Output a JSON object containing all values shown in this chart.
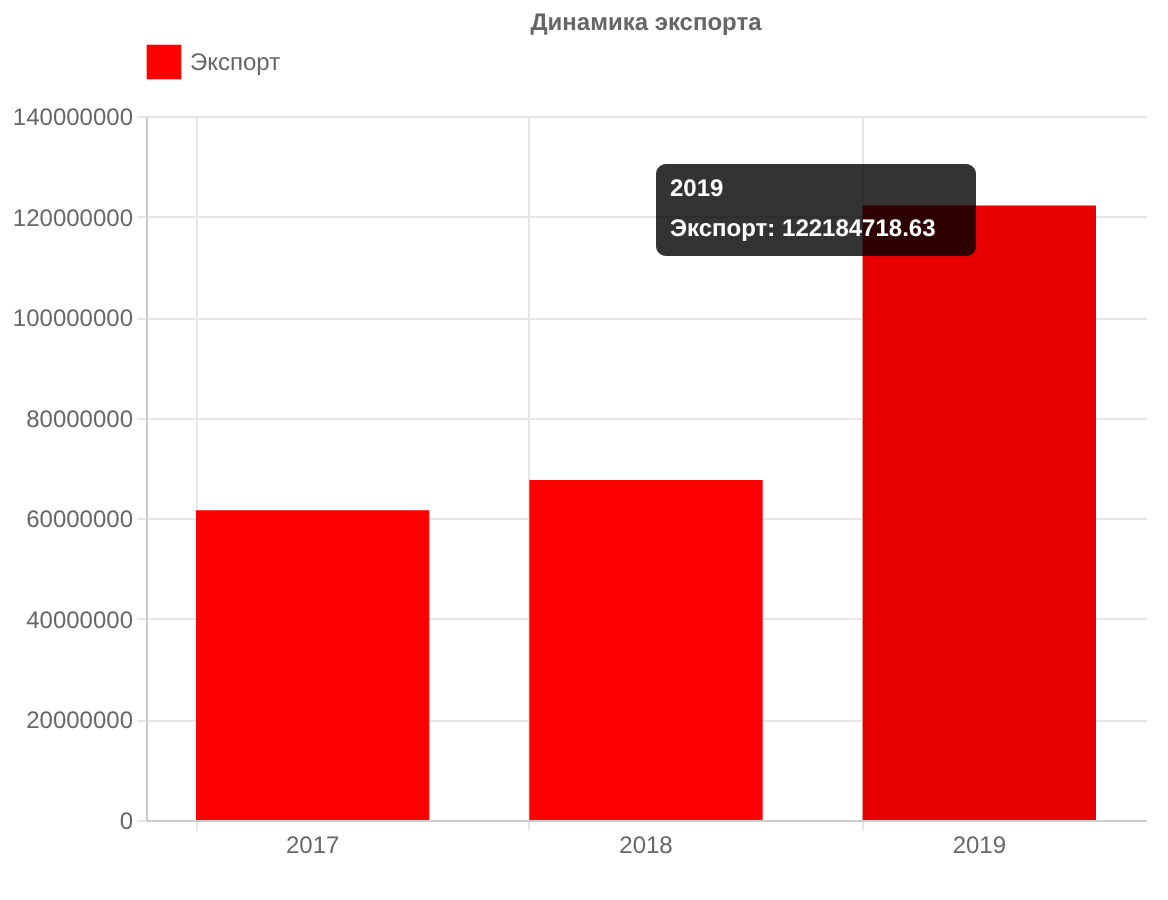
{
  "chart_data": {
    "type": "bar",
    "title": "Динамика экспорта",
    "categories": [
      "2017",
      "2018",
      "2019"
    ],
    "series": [
      {
        "name": "Экспорт",
        "color": "#ff0000",
        "colors": [
          "#ff0000",
          "#ff0000",
          "#e60000"
        ],
        "values": [
          61600000,
          67600000,
          122184718.63
        ]
      }
    ],
    "ylim": [
      0,
      140000000
    ],
    "yticks": [
      0,
      20000000,
      40000000,
      60000000,
      80000000,
      100000000,
      120000000,
      140000000
    ],
    "grid": true,
    "legend": "top",
    "annotations": [
      "2019",
      "Экспорт: 122184718.63"
    ]
  }
}
